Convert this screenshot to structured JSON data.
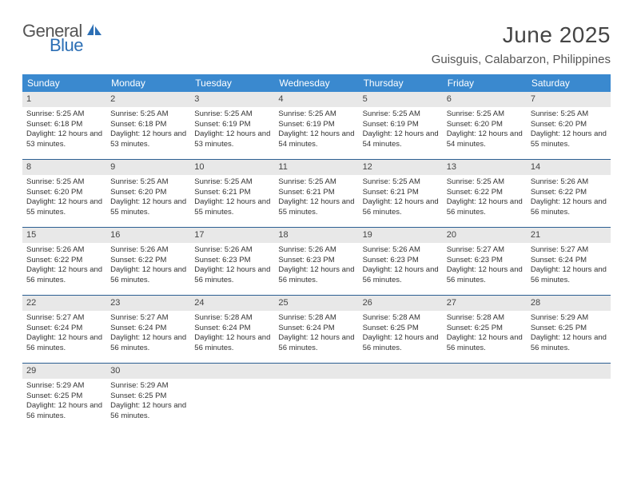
{
  "logo": {
    "text1": "General",
    "text2": "Blue",
    "shape_color": "#2c6fb5"
  },
  "title": "June 2025",
  "location": "Guisguis, Calabarzon, Philippines",
  "colors": {
    "header_bg": "#3a89cf",
    "header_text": "#ffffff",
    "daynum_bg": "#e8e8e8",
    "week_border": "#2c5f92"
  },
  "days_of_week": [
    "Sunday",
    "Monday",
    "Tuesday",
    "Wednesday",
    "Thursday",
    "Friday",
    "Saturday"
  ],
  "weeks": [
    [
      {
        "n": "1",
        "sr": "5:25 AM",
        "ss": "6:18 PM",
        "dl": "12 hours and 53 minutes."
      },
      {
        "n": "2",
        "sr": "5:25 AM",
        "ss": "6:18 PM",
        "dl": "12 hours and 53 minutes."
      },
      {
        "n": "3",
        "sr": "5:25 AM",
        "ss": "6:19 PM",
        "dl": "12 hours and 53 minutes."
      },
      {
        "n": "4",
        "sr": "5:25 AM",
        "ss": "6:19 PM",
        "dl": "12 hours and 54 minutes."
      },
      {
        "n": "5",
        "sr": "5:25 AM",
        "ss": "6:19 PM",
        "dl": "12 hours and 54 minutes."
      },
      {
        "n": "6",
        "sr": "5:25 AM",
        "ss": "6:20 PM",
        "dl": "12 hours and 54 minutes."
      },
      {
        "n": "7",
        "sr": "5:25 AM",
        "ss": "6:20 PM",
        "dl": "12 hours and 55 minutes."
      }
    ],
    [
      {
        "n": "8",
        "sr": "5:25 AM",
        "ss": "6:20 PM",
        "dl": "12 hours and 55 minutes."
      },
      {
        "n": "9",
        "sr": "5:25 AM",
        "ss": "6:20 PM",
        "dl": "12 hours and 55 minutes."
      },
      {
        "n": "10",
        "sr": "5:25 AM",
        "ss": "6:21 PM",
        "dl": "12 hours and 55 minutes."
      },
      {
        "n": "11",
        "sr": "5:25 AM",
        "ss": "6:21 PM",
        "dl": "12 hours and 55 minutes."
      },
      {
        "n": "12",
        "sr": "5:25 AM",
        "ss": "6:21 PM",
        "dl": "12 hours and 56 minutes."
      },
      {
        "n": "13",
        "sr": "5:25 AM",
        "ss": "6:22 PM",
        "dl": "12 hours and 56 minutes."
      },
      {
        "n": "14",
        "sr": "5:26 AM",
        "ss": "6:22 PM",
        "dl": "12 hours and 56 minutes."
      }
    ],
    [
      {
        "n": "15",
        "sr": "5:26 AM",
        "ss": "6:22 PM",
        "dl": "12 hours and 56 minutes."
      },
      {
        "n": "16",
        "sr": "5:26 AM",
        "ss": "6:22 PM",
        "dl": "12 hours and 56 minutes."
      },
      {
        "n": "17",
        "sr": "5:26 AM",
        "ss": "6:23 PM",
        "dl": "12 hours and 56 minutes."
      },
      {
        "n": "18",
        "sr": "5:26 AM",
        "ss": "6:23 PM",
        "dl": "12 hours and 56 minutes."
      },
      {
        "n": "19",
        "sr": "5:26 AM",
        "ss": "6:23 PM",
        "dl": "12 hours and 56 minutes."
      },
      {
        "n": "20",
        "sr": "5:27 AM",
        "ss": "6:23 PM",
        "dl": "12 hours and 56 minutes."
      },
      {
        "n": "21",
        "sr": "5:27 AM",
        "ss": "6:24 PM",
        "dl": "12 hours and 56 minutes."
      }
    ],
    [
      {
        "n": "22",
        "sr": "5:27 AM",
        "ss": "6:24 PM",
        "dl": "12 hours and 56 minutes."
      },
      {
        "n": "23",
        "sr": "5:27 AM",
        "ss": "6:24 PM",
        "dl": "12 hours and 56 minutes."
      },
      {
        "n": "24",
        "sr": "5:28 AM",
        "ss": "6:24 PM",
        "dl": "12 hours and 56 minutes."
      },
      {
        "n": "25",
        "sr": "5:28 AM",
        "ss": "6:24 PM",
        "dl": "12 hours and 56 minutes."
      },
      {
        "n": "26",
        "sr": "5:28 AM",
        "ss": "6:25 PM",
        "dl": "12 hours and 56 minutes."
      },
      {
        "n": "27",
        "sr": "5:28 AM",
        "ss": "6:25 PM",
        "dl": "12 hours and 56 minutes."
      },
      {
        "n": "28",
        "sr": "5:29 AM",
        "ss": "6:25 PM",
        "dl": "12 hours and 56 minutes."
      }
    ],
    [
      {
        "n": "29",
        "sr": "5:29 AM",
        "ss": "6:25 PM",
        "dl": "12 hours and 56 minutes."
      },
      {
        "n": "30",
        "sr": "5:29 AM",
        "ss": "6:25 PM",
        "dl": "12 hours and 56 minutes."
      },
      null,
      null,
      null,
      null,
      null
    ]
  ],
  "labels": {
    "sunrise": "Sunrise:",
    "sunset": "Sunset:",
    "daylight": "Daylight:"
  }
}
